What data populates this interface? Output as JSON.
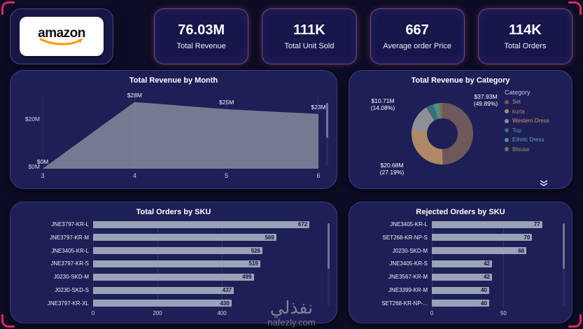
{
  "logo": {
    "brand": "amazon"
  },
  "kpis": [
    {
      "value": "76.03M",
      "label": "Total Revenue"
    },
    {
      "value": "111K",
      "label": "Total Unit Sold"
    },
    {
      "value": "667",
      "label": "Average order Price"
    },
    {
      "value": "114K",
      "label": "Total Orders"
    }
  ],
  "watermark": {
    "arabic": "نفذلي",
    "site": "nafezly.com"
  },
  "chart_data": [
    {
      "type": "area",
      "title": "Total Revenue by Month",
      "x": [
        3,
        4,
        5,
        6
      ],
      "values_millions": [
        0,
        28,
        25,
        23
      ],
      "point_labels": [
        "$0M",
        "$28M",
        "$25M",
        "$23M"
      ],
      "yticks": [
        "$0M",
        "$20M"
      ],
      "ylim": [
        0,
        30
      ],
      "fill_color": "#87909f"
    },
    {
      "type": "pie",
      "title": "Total Revenue by Category",
      "legend_title": "Category",
      "slices": [
        {
          "label": "Set",
          "value_label": "$37.93M",
          "pct": 49.89,
          "pct_label": "(49.89%)",
          "color": "#6e585c",
          "text_color": "#9b9ba8"
        },
        {
          "label": "kurta",
          "value_label": "$20.68M",
          "pct": 27.19,
          "pct_label": "(27.19%)",
          "color": "#b08a66",
          "text_color": "#b8806e"
        },
        {
          "label": "Western Dress",
          "value_label": "$10.71M",
          "pct": 14.08,
          "pct_label": "(14.08%)",
          "color": "#8f8f99",
          "text_color": "#cc9468"
        },
        {
          "label": "Top",
          "pct": 4.2,
          "color": "#3f6f74",
          "text_color": "#4f9c9c"
        },
        {
          "label": "Ethnic Dress",
          "pct": 2.9,
          "color": "#4f8d8d",
          "text_color": "#57a8a8"
        },
        {
          "label": "Blouse",
          "pct": 1.74,
          "color": "#7d6f4a",
          "text_color": "#a08f5a"
        }
      ]
    },
    {
      "type": "bar",
      "title": "Total Orders by SKU",
      "orientation": "horizontal",
      "categories": [
        "JNE3797-KR-L",
        "JNE3797-KR-M",
        "JNE3405-KR-L",
        "JNE3797-KR-S",
        "J0230-SKD-M",
        "J0230-SKD-S",
        "JNE3797-KR-XL"
      ],
      "values": [
        672,
        569,
        526,
        519,
        499,
        437,
        430
      ],
      "xticks": [
        0,
        200,
        400
      ],
      "xlim": [
        0,
        700
      ],
      "bar_color": "#98a2b8"
    },
    {
      "type": "bar",
      "title": "Rejected Orders by SKU",
      "orientation": "horizontal",
      "categories": [
        "JNE3405-KR-L",
        "SET268-KR-NP-S",
        "J0230-SKD-M",
        "JNE3405-KR-S",
        "JNE3567-KR-M",
        "JNE3399-KR-M",
        "SET268-KR-NP-..."
      ],
      "values": [
        77,
        70,
        66,
        42,
        42,
        40,
        40
      ],
      "xticks": [
        0,
        50
      ],
      "xlim": [
        0,
        85
      ],
      "bar_color": "#98a2b8"
    }
  ]
}
